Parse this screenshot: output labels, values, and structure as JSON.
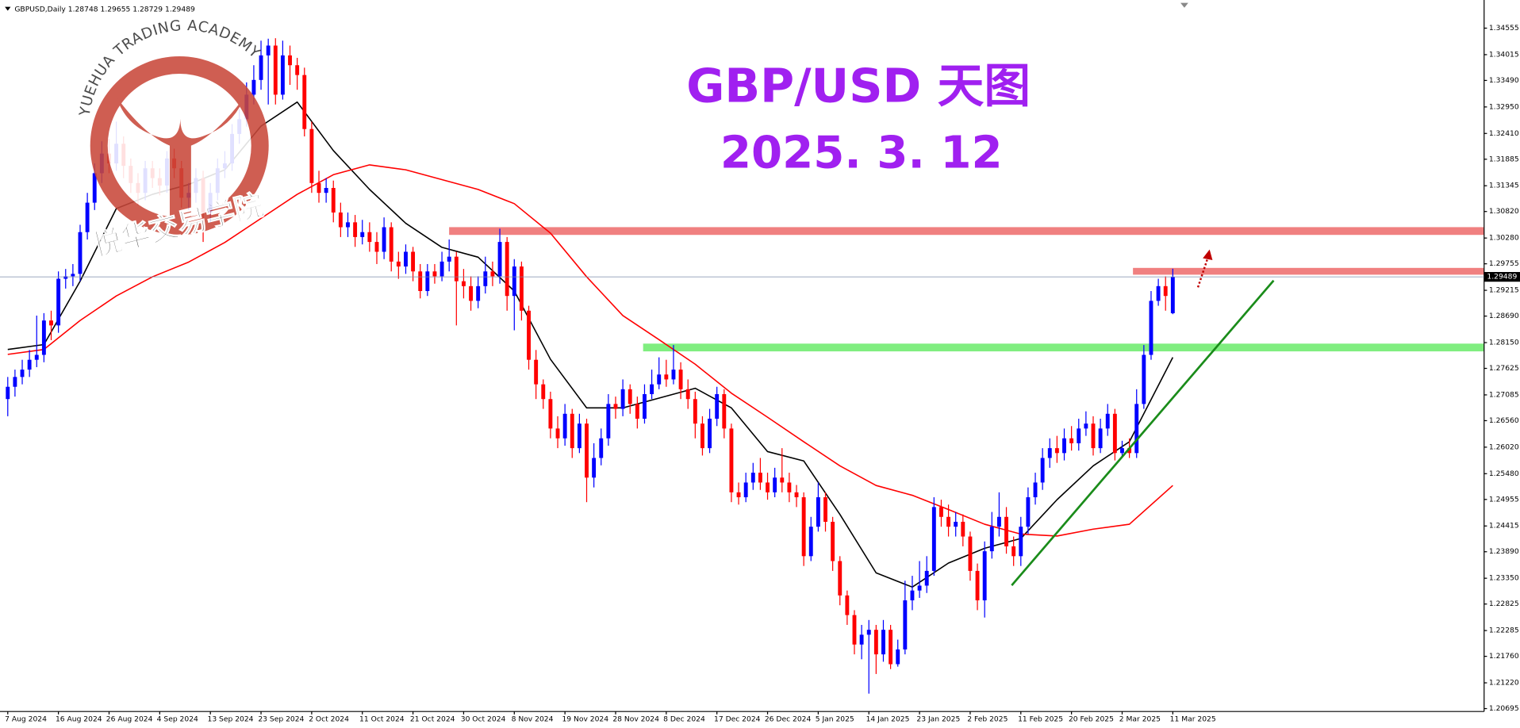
{
  "header": "GBPUSD,Daily  1.28748 1.29655 1.28729 1.29489",
  "logo": {
    "name_en": "YUEHUA TRADING ACADEMY",
    "name_cn": "悦华交易学院"
  },
  "chart_data": {
    "type": "candlestick",
    "title": "GBP/USD 天图",
    "subtitle": "2025. 3. 12",
    "up_color": "#0000ff",
    "down_color": "#ff0000",
    "last_price": 1.29489,
    "ylim": [
      1.20636,
      1.35069
    ],
    "yticks": [
      1.34555,
      1.34015,
      {
        "value": 1.3349,
        "label": "1.33490"
      },
      {
        "value": 1.3295,
        "label": "1.32950"
      },
      {
        "value": 1.3241,
        "label": "1.32410"
      },
      1.31885,
      1.31345,
      {
        "value": 1.3082,
        "label": "1.30820"
      },
      {
        "value": 1.3028,
        "label": "1.30280"
      },
      1.29755,
      1.29215,
      {
        "value": 1.2869,
        "label": "1.28690"
      },
      {
        "value": 1.2815,
        "label": "1.28150"
      },
      1.27625,
      1.27085,
      {
        "value": 1.2656,
        "label": "1.26560"
      },
      {
        "value": 1.2602,
        "label": "1.26020"
      },
      {
        "value": 1.2548,
        "label": "1.25480"
      },
      1.24955,
      1.24415,
      {
        "value": 1.2389,
        "label": "1.23890"
      },
      {
        "value": 1.2335,
        "label": "1.23350"
      },
      1.22825,
      1.22285,
      {
        "value": 1.2176,
        "label": "1.21760"
      },
      {
        "value": 1.2122,
        "label": "1.21220"
      },
      1.20695
    ],
    "categories": [
      "7 Aug 2024",
      null,
      null,
      null,
      null,
      null,
      null,
      "16 Aug 2024",
      null,
      null,
      null,
      null,
      null,
      null,
      "26 Aug 2024",
      null,
      null,
      null,
      null,
      null,
      null,
      "4 Sep 2024",
      null,
      null,
      null,
      null,
      null,
      null,
      "13 Sep 2024",
      null,
      null,
      null,
      null,
      null,
      null,
      "23 Sep 2024",
      null,
      null,
      null,
      null,
      null,
      null,
      "2 Oct 2024",
      null,
      null,
      null,
      null,
      null,
      null,
      "11 Oct 2024",
      null,
      null,
      null,
      null,
      null,
      null,
      "21 Oct 2024",
      null,
      null,
      null,
      null,
      null,
      null,
      "30 Oct 2024",
      null,
      null,
      null,
      null,
      null,
      null,
      "8 Nov 2024",
      null,
      null,
      null,
      null,
      null,
      null,
      "19 Nov 2024",
      null,
      null,
      null,
      null,
      null,
      null,
      "28 Nov 2024",
      null,
      null,
      null,
      null,
      null,
      null,
      "8 Dec 2024",
      null,
      null,
      null,
      null,
      null,
      null,
      "17 Dec 2024",
      null,
      null,
      null,
      null,
      null,
      null,
      "26 Dec 2024",
      null,
      null,
      null,
      null,
      null,
      null,
      "5 Jan 2025",
      null,
      null,
      null,
      null,
      null,
      null,
      "14 Jan 2025",
      null,
      null,
      null,
      null,
      null,
      null,
      "23 Jan 2025",
      null,
      null,
      null,
      null,
      null,
      null,
      "2 Feb 2025",
      null,
      null,
      null,
      null,
      null,
      null,
      "11 Feb 2025",
      null,
      null,
      null,
      null,
      null,
      null,
      "20 Feb 2025",
      null,
      null,
      null,
      null,
      null,
      null,
      "2 Mar 2025",
      null,
      null,
      null,
      null,
      null,
      null,
      "11 Mar 2025"
    ],
    "open": [
      1.27,
      1.2725,
      1.2745,
      1.276,
      1.278,
      1.279,
      1.286,
      1.285,
      1.2945,
      1.295,
      1.2955,
      1.304,
      1.31,
      1.316,
      1.32,
      1.318,
      1.322,
      1.3175,
      1.314,
      1.312,
      1.317,
      1.315,
      1.3135,
      1.319,
      1.317,
      1.311,
      1.312,
      1.315,
      1.308,
      1.312,
      1.317,
      1.318,
      1.324,
      1.327,
      1.332,
      1.335,
      1.34,
      1.342,
      1.332,
      1.34,
      1.338,
      1.336,
      1.325,
      1.314,
      1.312,
      1.313,
      1.308,
      1.305,
      1.306,
      1.303,
      1.304,
      1.302,
      1.3,
      1.305,
      1.298,
      1.297,
      1.3,
      1.296,
      1.292,
      1.296,
      1.295,
      1.298,
      1.299,
      1.294,
      1.293,
      1.29,
      1.293,
      1.296,
      1.295,
      1.302,
      1.291,
      1.297,
      1.288,
      1.278,
      1.273,
      1.27,
      1.264,
      1.262,
      1.267,
      1.26,
      1.265,
      1.254,
      1.258,
      1.262,
      1.269,
      1.268,
      1.272,
      1.269,
      1.266,
      1.271,
      1.273,
      1.275,
      1.274,
      1.276,
      1.272,
      1.27,
      1.265,
      1.26,
      1.266,
      1.271,
      1.264,
      1.251,
      1.25,
      1.253,
      1.255,
      1.253,
      1.251,
      1.254,
      1.253,
      1.251,
      1.25,
      1.238,
      1.244,
      1.25,
      1.245,
      1.237,
      1.23,
      1.226,
      1.22,
      1.222,
      1.223,
      1.218,
      1.223,
      1.216,
      1.219,
      1.229,
      1.231,
      1.232,
      1.235,
      1.248,
      1.246,
      1.244,
      1.245,
      1.242,
      1.235,
      1.229,
      1.239,
      1.244,
      1.246,
      1.24,
      1.238,
      1.244,
      1.25,
      1.253,
      1.258,
      1.26,
      1.259,
      1.262,
      1.261,
      1.264,
      1.265,
      1.26,
      1.264,
      1.267,
      1.259,
      1.26,
      1.259,
      1.269,
      1.279,
      1.29,
      1.293,
      1.28748
    ],
    "high": [
      1.2745,
      1.276,
      1.278,
      1.28,
      1.287,
      1.2875,
      1.288,
      1.296,
      1.2965,
      1.2975,
      1.3055,
      1.312,
      1.318,
      1.3225,
      1.323,
      1.3265,
      1.3235,
      1.319,
      1.316,
      1.3185,
      1.3185,
      1.317,
      1.3205,
      1.321,
      1.3185,
      1.314,
      1.317,
      1.3165,
      1.314,
      1.319,
      1.3205,
      1.326,
      1.329,
      1.3345,
      1.338,
      1.343,
      1.3434,
      1.3435,
      1.343,
      1.342,
      1.3395,
      1.3375,
      1.3265,
      1.3165,
      1.315,
      1.3145,
      1.31,
      1.308,
      1.3075,
      1.3065,
      1.306,
      1.304,
      1.307,
      1.306,
      1.3,
      1.3015,
      1.301,
      1.2975,
      1.2975,
      1.2975,
      1.3,
      1.3025,
      1.3,
      1.2965,
      1.295,
      1.295,
      1.299,
      1.298,
      1.3047,
      1.303,
      1.2985,
      1.298,
      1.289,
      1.28,
      1.274,
      1.2715,
      1.2665,
      1.269,
      1.268,
      1.267,
      1.266,
      1.261,
      1.264,
      1.271,
      1.2705,
      1.274,
      1.273,
      1.2705,
      1.273,
      1.276,
      1.2785,
      1.278,
      1.281,
      1.2775,
      1.274,
      1.2715,
      1.2665,
      1.268,
      1.2725,
      1.272,
      1.265,
      1.253,
      1.255,
      1.257,
      1.258,
      1.255,
      1.256,
      1.26,
      1.255,
      1.2525,
      1.251,
      1.246,
      1.253,
      1.251,
      1.246,
      1.238,
      1.231,
      1.227,
      1.224,
      1.225,
      1.224,
      1.225,
      1.224,
      1.221,
      1.233,
      1.234,
      1.237,
      1.238,
      1.25,
      1.2495,
      1.2485,
      1.247,
      1.2465,
      1.243,
      1.2365,
      1.241,
      1.247,
      1.251,
      1.248,
      1.242,
      1.246,
      1.252,
      1.255,
      1.26,
      1.262,
      1.2625,
      1.264,
      1.2645,
      1.266,
      1.2675,
      1.2665,
      1.266,
      1.269,
      1.268,
      1.2615,
      1.262,
      1.272,
      1.281,
      1.292,
      1.2945,
      1.295,
      1.29655
    ],
    "low": [
      1.2665,
      1.2705,
      1.273,
      1.2745,
      1.2765,
      1.2775,
      1.282,
      1.2835,
      1.2925,
      1.293,
      1.294,
      1.3025,
      1.3085,
      1.314,
      1.316,
      1.3165,
      1.315,
      1.312,
      1.3095,
      1.3105,
      1.313,
      1.3115,
      1.312,
      1.315,
      1.309,
      1.3085,
      1.31,
      1.302,
      1.306,
      1.3105,
      1.315,
      1.3165,
      1.322,
      1.3255,
      1.33,
      1.333,
      1.33,
      1.33,
      1.331,
      1.334,
      1.333,
      1.3235,
      1.312,
      1.31,
      1.31,
      1.306,
      1.303,
      1.303,
      1.301,
      1.3015,
      1.3,
      1.2975,
      1.2985,
      1.296,
      1.2945,
      1.2955,
      1.294,
      1.2905,
      1.291,
      1.2935,
      1.294,
      1.296,
      1.285,
      1.2905,
      1.288,
      1.2885,
      1.2915,
      1.293,
      1.2935,
      1.288,
      1.284,
      1.286,
      1.276,
      1.27,
      1.268,
      1.262,
      1.26,
      1.2605,
      1.258,
      1.259,
      1.249,
      1.252,
      1.2565,
      1.2605,
      1.266,
      1.2665,
      1.267,
      1.264,
      1.265,
      1.27,
      1.272,
      1.2725,
      1.273,
      1.27,
      1.268,
      1.262,
      1.2585,
      1.259,
      1.2645,
      1.262,
      1.249,
      1.2485,
      1.249,
      1.2515,
      1.2515,
      1.2495,
      1.25,
      1.251,
      1.249,
      1.248,
      1.236,
      1.237,
      1.243,
      1.243,
      1.235,
      1.228,
      1.224,
      1.218,
      1.217,
      1.21,
      1.214,
      1.2165,
      1.215,
      1.2155,
      1.218,
      1.227,
      1.2295,
      1.2305,
      1.234,
      1.244,
      1.242,
      1.242,
      1.24,
      1.233,
      1.227,
      1.2255,
      1.2375,
      1.242,
      1.2385,
      1.236,
      1.236,
      1.2425,
      1.2485,
      1.2515,
      1.256,
      1.257,
      1.2575,
      1.2595,
      1.2595,
      1.2625,
      1.2585,
      1.259,
      1.2625,
      1.2575,
      1.258,
      1.258,
      1.258,
      1.268,
      1.278,
      1.289,
      1.288,
      1.28729
    ],
    "close": [
      1.2725,
      1.2745,
      1.276,
      1.278,
      1.279,
      1.286,
      1.285,
      1.2945,
      1.295,
      1.2955,
      1.304,
      1.31,
      1.316,
      1.32,
      1.318,
      1.322,
      1.3175,
      1.314,
      1.312,
      1.317,
      1.315,
      1.3135,
      1.319,
      1.317,
      1.311,
      1.312,
      1.315,
      1.308,
      1.312,
      1.317,
      1.318,
      1.324,
      1.327,
      1.332,
      1.335,
      1.34,
      1.342,
      1.332,
      1.34,
      1.338,
      1.336,
      1.325,
      1.314,
      1.312,
      1.313,
      1.308,
      1.305,
      1.306,
      1.303,
      1.304,
      1.302,
      1.3,
      1.305,
      1.298,
      1.297,
      1.3,
      1.296,
      1.292,
      1.296,
      1.295,
      1.298,
      1.299,
      1.294,
      1.293,
      1.29,
      1.293,
      1.296,
      1.295,
      1.302,
      1.291,
      1.297,
      1.288,
      1.278,
      1.273,
      1.27,
      1.264,
      1.262,
      1.267,
      1.26,
      1.265,
      1.254,
      1.258,
      1.262,
      1.269,
      1.268,
      1.272,
      1.269,
      1.266,
      1.271,
      1.273,
      1.275,
      1.274,
      1.276,
      1.272,
      1.27,
      1.265,
      1.26,
      1.266,
      1.271,
      1.264,
      1.251,
      1.25,
      1.253,
      1.255,
      1.253,
      1.251,
      1.254,
      1.253,
      1.251,
      1.25,
      1.238,
      1.244,
      1.25,
      1.245,
      1.237,
      1.23,
      1.226,
      1.22,
      1.222,
      1.223,
      1.218,
      1.223,
      1.216,
      1.219,
      1.229,
      1.231,
      1.232,
      1.235,
      1.248,
      1.246,
      1.244,
      1.245,
      1.242,
      1.235,
      1.229,
      1.239,
      1.244,
      1.246,
      1.24,
      1.238,
      1.244,
      1.25,
      1.253,
      1.258,
      1.26,
      1.259,
      1.262,
      1.261,
      1.264,
      1.265,
      1.26,
      1.264,
      1.267,
      1.259,
      1.26,
      1.259,
      1.269,
      1.279,
      1.29,
      1.293,
      1.291,
      1.29489
    ],
    "series": [
      {
        "color": "#000000",
        "x": [
          0,
          5,
          10,
          15,
          20,
          25,
          30,
          35,
          40,
          45,
          50,
          55,
          60,
          65,
          70,
          75,
          80,
          85,
          90,
          95,
          100,
          105,
          110,
          115,
          120,
          125,
          130,
          135,
          140,
          145,
          150,
          155,
          161
        ],
        "values": [
          1.2801,
          1.2811,
          1.294,
          1.3088,
          1.3117,
          1.3137,
          1.3167,
          1.3256,
          1.3305,
          1.3206,
          1.3127,
          1.3058,
          1.3009,
          1.2989,
          1.292,
          1.2781,
          1.2682,
          1.2682,
          1.2702,
          1.2722,
          1.2682,
          1.2593,
          1.2574,
          1.2465,
          1.2346,
          1.2317,
          1.2366,
          1.2396,
          1.2416,
          1.2495,
          1.2564,
          1.2613,
          1.2785
        ]
      },
      {
        "color": "#ff0000",
        "x": [
          0,
          5,
          10,
          15,
          20,
          25,
          30,
          35,
          40,
          45,
          50,
          55,
          60,
          65,
          70,
          75,
          80,
          85,
          90,
          95,
          100,
          105,
          110,
          115,
          120,
          125,
          130,
          135,
          140,
          145,
          150,
          155,
          161
        ],
        "values": [
          1.2791,
          1.2801,
          1.286,
          1.291,
          1.2949,
          1.2979,
          1.3019,
          1.3068,
          1.3117,
          1.3157,
          1.3177,
          1.3167,
          1.3147,
          1.3127,
          1.3098,
          1.3038,
          1.2949,
          1.287,
          1.2821,
          1.2771,
          1.2712,
          1.2663,
          1.2613,
          1.2564,
          1.2524,
          1.2504,
          1.2475,
          1.2445,
          1.2425,
          1.2421,
          1.2435,
          1.2445,
          1.2524
        ]
      }
    ]
  }
}
